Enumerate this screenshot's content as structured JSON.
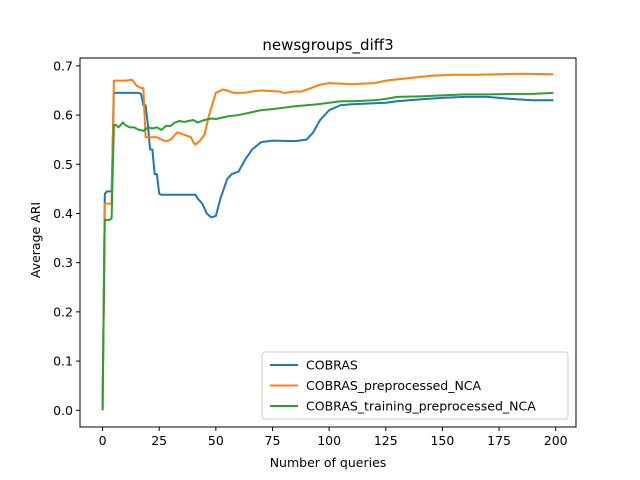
{
  "chart_data": {
    "type": "line",
    "title": "newsgroups_diff3",
    "xlabel": "Number of queries",
    "ylabel": "Average ARI",
    "xlim": [
      -9.95,
      208.95
    ],
    "ylim": [
      -0.034,
      0.716
    ],
    "xticks": [
      0,
      25,
      50,
      75,
      100,
      125,
      150,
      175,
      200
    ],
    "yticks": [
      0.0,
      0.1,
      0.2,
      0.3,
      0.4,
      0.5,
      0.6,
      0.7
    ],
    "xtick_labels": [
      "0",
      "25",
      "50",
      "75",
      "100",
      "125",
      "150",
      "175",
      "200"
    ],
    "ytick_labels": [
      "0.0",
      "0.1",
      "0.2",
      "0.3",
      "0.4",
      "0.5",
      "0.6",
      "0.7"
    ],
    "grid": false,
    "legend_position": "lower right",
    "series": [
      {
        "name": "COBRAS",
        "color": "#1f77b4",
        "points": [
          [
            0,
            0.0
          ],
          [
            1,
            0.44
          ],
          [
            2,
            0.445
          ],
          [
            4,
            0.445
          ],
          [
            5,
            0.645
          ],
          [
            10,
            0.645
          ],
          [
            16,
            0.645
          ],
          [
            17,
            0.643
          ],
          [
            18,
            0.62
          ],
          [
            19,
            0.62
          ],
          [
            20,
            0.58
          ],
          [
            21,
            0.53
          ],
          [
            22,
            0.53
          ],
          [
            23,
            0.48
          ],
          [
            24,
            0.48
          ],
          [
            25,
            0.44
          ],
          [
            26,
            0.438
          ],
          [
            35,
            0.438
          ],
          [
            41,
            0.438
          ],
          [
            42,
            0.43
          ],
          [
            44,
            0.42
          ],
          [
            46,
            0.4
          ],
          [
            48,
            0.392
          ],
          [
            50,
            0.395
          ],
          [
            52,
            0.43
          ],
          [
            55,
            0.47
          ],
          [
            57,
            0.48
          ],
          [
            60,
            0.485
          ],
          [
            63,
            0.51
          ],
          [
            66,
            0.53
          ],
          [
            70,
            0.545
          ],
          [
            75,
            0.548
          ],
          [
            85,
            0.547
          ],
          [
            90,
            0.55
          ],
          [
            93,
            0.565
          ],
          [
            96,
            0.59
          ],
          [
            100,
            0.61
          ],
          [
            105,
            0.62
          ],
          [
            110,
            0.622
          ],
          [
            120,
            0.624
          ],
          [
            125,
            0.625
          ],
          [
            130,
            0.628
          ],
          [
            140,
            0.632
          ],
          [
            150,
            0.635
          ],
          [
            160,
            0.637
          ],
          [
            170,
            0.637
          ],
          [
            180,
            0.633
          ],
          [
            190,
            0.63
          ],
          [
            199,
            0.63
          ]
        ]
      },
      {
        "name": "COBRAS_preprocessed_NCA",
        "color": "#ff7f0e",
        "points": [
          [
            0,
            0.0
          ],
          [
            1,
            0.42
          ],
          [
            4,
            0.42
          ],
          [
            5,
            0.67
          ],
          [
            10,
            0.67
          ],
          [
            13,
            0.672
          ],
          [
            15,
            0.66
          ],
          [
            17,
            0.655
          ],
          [
            18,
            0.655
          ],
          [
            19,
            0.555
          ],
          [
            20,
            0.555
          ],
          [
            22,
            0.555
          ],
          [
            24,
            0.555
          ],
          [
            26,
            0.55
          ],
          [
            28,
            0.547
          ],
          [
            30,
            0.55
          ],
          [
            32,
            0.56
          ],
          [
            33,
            0.565
          ],
          [
            36,
            0.56
          ],
          [
            39,
            0.555
          ],
          [
            40,
            0.545
          ],
          [
            41,
            0.54
          ],
          [
            43,
            0.548
          ],
          [
            45,
            0.56
          ],
          [
            47,
            0.6
          ],
          [
            50,
            0.645
          ],
          [
            53,
            0.652
          ],
          [
            55,
            0.65
          ],
          [
            58,
            0.645
          ],
          [
            62,
            0.645
          ],
          [
            66,
            0.648
          ],
          [
            70,
            0.65
          ],
          [
            78,
            0.648
          ],
          [
            80,
            0.645
          ],
          [
            85,
            0.648
          ],
          [
            88,
            0.648
          ],
          [
            92,
            0.655
          ],
          [
            96,
            0.662
          ],
          [
            100,
            0.665
          ],
          [
            110,
            0.663
          ],
          [
            120,
            0.665
          ],
          [
            125,
            0.67
          ],
          [
            135,
            0.675
          ],
          [
            145,
            0.68
          ],
          [
            155,
            0.682
          ],
          [
            165,
            0.682
          ],
          [
            175,
            0.683
          ],
          [
            185,
            0.684
          ],
          [
            199,
            0.683
          ]
        ]
      },
      {
        "name": "COBRAS_training_preprocessed_NCA",
        "color": "#2ca02c",
        "points": [
          [
            0,
            0.0
          ],
          [
            1,
            0.387
          ],
          [
            3,
            0.387
          ],
          [
            4,
            0.39
          ],
          [
            5,
            0.58
          ],
          [
            6,
            0.58
          ],
          [
            7,
            0.575
          ],
          [
            9,
            0.585
          ],
          [
            10,
            0.58
          ],
          [
            12,
            0.575
          ],
          [
            14,
            0.575
          ],
          [
            16,
            0.57
          ],
          [
            18,
            0.568
          ],
          [
            20,
            0.575
          ],
          [
            22,
            0.573
          ],
          [
            24,
            0.575
          ],
          [
            26,
            0.57
          ],
          [
            28,
            0.578
          ],
          [
            30,
            0.578
          ],
          [
            32,
            0.585
          ],
          [
            34,
            0.588
          ],
          [
            36,
            0.586
          ],
          [
            40,
            0.59
          ],
          [
            42,
            0.585
          ],
          [
            45,
            0.59
          ],
          [
            48,
            0.593
          ],
          [
            50,
            0.592
          ],
          [
            53,
            0.595
          ],
          [
            56,
            0.598
          ],
          [
            60,
            0.6
          ],
          [
            65,
            0.605
          ],
          [
            70,
            0.61
          ],
          [
            75,
            0.612
          ],
          [
            80,
            0.615
          ],
          [
            85,
            0.618
          ],
          [
            90,
            0.62
          ],
          [
            95,
            0.622
          ],
          [
            100,
            0.625
          ],
          [
            105,
            0.628
          ],
          [
            110,
            0.628
          ],
          [
            120,
            0.63
          ],
          [
            125,
            0.633
          ],
          [
            130,
            0.637
          ],
          [
            140,
            0.638
          ],
          [
            150,
            0.64
          ],
          [
            160,
            0.642
          ],
          [
            170,
            0.642
          ],
          [
            180,
            0.643
          ],
          [
            190,
            0.643
          ],
          [
            199,
            0.645
          ]
        ]
      }
    ]
  }
}
